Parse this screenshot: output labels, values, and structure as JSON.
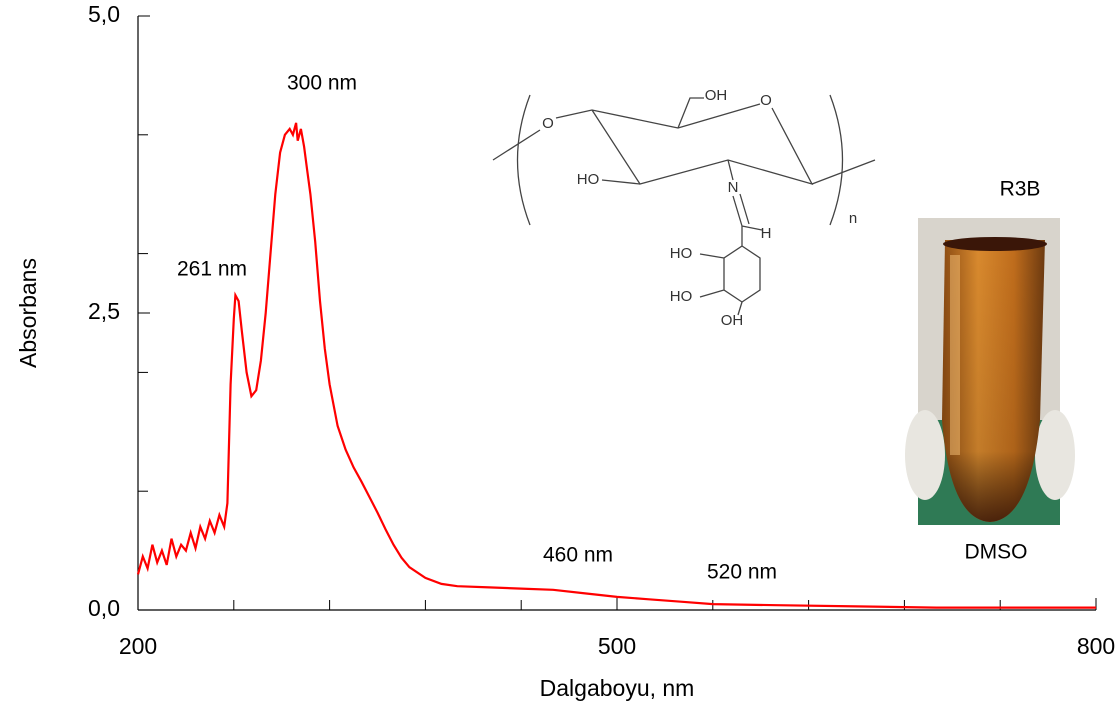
{
  "chart_data": {
    "type": "line",
    "xlabel": "Dalgaboyu, nm",
    "ylabel": "Absorbans",
    "xlim": [
      200,
      800
    ],
    "ylim": [
      0,
      5
    ],
    "xticks": [
      200,
      500,
      800
    ],
    "x_minor_ticks": [
      260,
      320,
      380,
      440,
      560,
      620,
      680,
      740
    ],
    "yticks": [
      {
        "value": 0,
        "label": "0,0"
      },
      {
        "value": 2.5,
        "label": "2,5"
      },
      {
        "value": 5,
        "label": "5,0"
      }
    ],
    "y_minor_ticks": [
      1,
      2,
      3,
      4
    ],
    "annotations": [
      "300 nm",
      "261 nm",
      "460 nm",
      "520 nm",
      "R3B",
      "DMSO"
    ],
    "structure_labels": [
      "O",
      "OH",
      "O",
      "HO",
      "N",
      "H",
      "HO",
      "HO",
      "OH",
      "n"
    ],
    "series": [
      {
        "name": "R3B",
        "color": "#ff0000",
        "x": [
          200,
          203,
          206,
          209,
          212,
          215,
          218,
          221,
          224,
          227,
          230,
          233,
          236,
          239,
          242,
          245,
          248,
          251,
          254,
          256,
          258,
          260,
          261,
          263,
          265,
          268,
          271,
          274,
          277,
          280,
          283,
          286,
          289,
          292,
          295,
          297,
          299,
          300,
          302,
          304,
          306,
          308,
          311,
          314,
          317,
          320,
          325,
          330,
          335,
          340,
          345,
          350,
          355,
          360,
          365,
          370,
          380,
          390,
          400,
          420,
          440,
          460,
          480,
          500,
          520,
          540,
          560,
          600,
          650,
          700,
          750,
          800
        ],
        "values": [
          0.3,
          0.45,
          0.35,
          0.55,
          0.4,
          0.5,
          0.38,
          0.6,
          0.45,
          0.55,
          0.5,
          0.65,
          0.52,
          0.7,
          0.6,
          0.75,
          0.65,
          0.8,
          0.7,
          0.9,
          1.9,
          2.45,
          2.65,
          2.6,
          2.35,
          2.0,
          1.8,
          1.85,
          2.1,
          2.5,
          3.0,
          3.5,
          3.85,
          4.0,
          4.05,
          4.0,
          4.1,
          3.95,
          4.05,
          3.9,
          3.7,
          3.5,
          3.1,
          2.6,
          2.2,
          1.9,
          1.55,
          1.35,
          1.2,
          1.08,
          0.95,
          0.82,
          0.68,
          0.55,
          0.44,
          0.36,
          0.27,
          0.22,
          0.2,
          0.19,
          0.18,
          0.17,
          0.14,
          0.11,
          0.09,
          0.07,
          0.05,
          0.04,
          0.03,
          0.02,
          0.02,
          0.02
        ]
      }
    ]
  }
}
